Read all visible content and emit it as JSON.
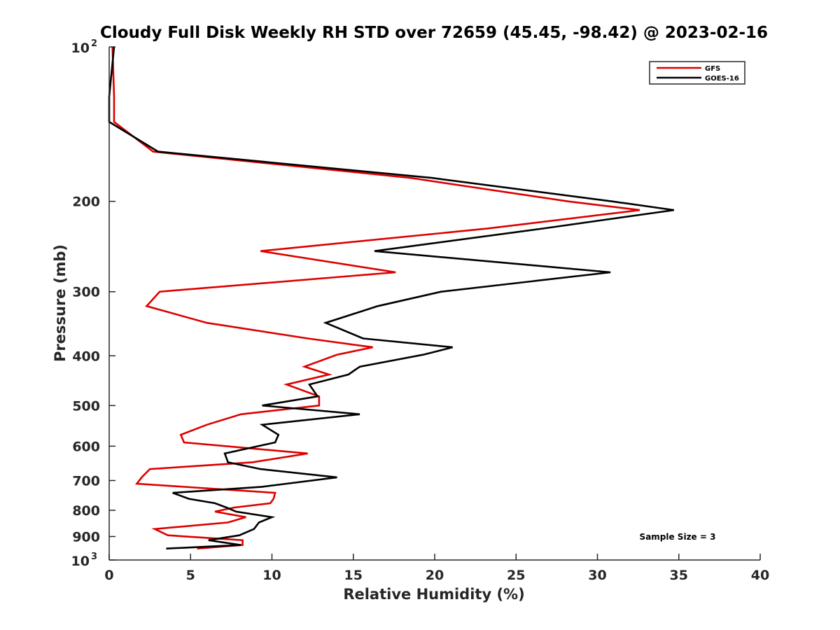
{
  "chart_data": {
    "type": "line",
    "title": "Cloudy Full Disk Weekly RH STD over 72659 (45.45, -98.42) @ 2023-02-16",
    "xlabel": "Relative Humidity (%)",
    "ylabel": "Pressure (mb)",
    "xlim": [
      0,
      40
    ],
    "ylim": [
      100,
      1000
    ],
    "yscale": "log",
    "y_reversed": true,
    "x_ticks": [
      0,
      5,
      10,
      15,
      20,
      25,
      30,
      35,
      40
    ],
    "x_tick_labels": [
      "0",
      "5",
      "10",
      "15",
      "20",
      "25",
      "30",
      "35",
      "40"
    ],
    "y_ticks": [
      200,
      300,
      400,
      500,
      600,
      700,
      800,
      900
    ],
    "y_tick_labels": [
      "200",
      "300",
      "400",
      "500",
      "600",
      "700",
      "800",
      "900"
    ],
    "y_end_labels": [
      {
        "value": 100,
        "base": "10",
        "exp": "2"
      },
      {
        "value": 1000,
        "base": "10",
        "exp": "3"
      }
    ],
    "grid": false,
    "legend_position": "top-right",
    "annotation": "Sample Size = 3",
    "series": [
      {
        "name": "GFS",
        "color": "#dd0000",
        "points": [
          [
            0.2,
            100
          ],
          [
            0.3,
            125
          ],
          [
            0.3,
            140
          ],
          [
            2.7,
            160
          ],
          [
            18.5,
            180
          ],
          [
            28.2,
            200
          ],
          [
            32.6,
            208
          ],
          [
            23.2,
            226
          ],
          [
            9.3,
            250
          ],
          [
            17.6,
            275
          ],
          [
            3.1,
            300
          ],
          [
            2.3,
            320
          ],
          [
            6,
            345
          ],
          [
            12.2,
            370
          ],
          [
            16.2,
            385
          ],
          [
            14,
            398
          ],
          [
            12,
            420
          ],
          [
            13.5,
            435
          ],
          [
            10.9,
            455
          ],
          [
            12.9,
            480
          ],
          [
            12.9,
            500
          ],
          [
            8.1,
            520
          ],
          [
            6,
            545
          ],
          [
            4.4,
            570
          ],
          [
            4.6,
            590
          ],
          [
            12.2,
            620
          ],
          [
            8.8,
            645
          ],
          [
            2.5,
            665
          ],
          [
            2,
            690
          ],
          [
            1.7,
            710
          ],
          [
            10.2,
            740
          ],
          [
            10.1,
            760
          ],
          [
            9.9,
            775
          ],
          [
            7.7,
            790
          ],
          [
            6.5,
            805
          ],
          [
            8.4,
            825
          ],
          [
            7.3,
            845
          ],
          [
            2.8,
            870
          ],
          [
            3.6,
            895
          ],
          [
            8.2,
            915
          ],
          [
            8.2,
            935
          ],
          [
            5.4,
            950
          ]
        ]
      },
      {
        "name": "GOES-16",
        "color": "#000000",
        "points": [
          [
            0.3,
            100
          ],
          [
            0,
            125
          ],
          [
            0,
            140
          ],
          [
            3,
            160
          ],
          [
            19.8,
            180
          ],
          [
            30.9,
            200
          ],
          [
            34.7,
            208
          ],
          [
            26.6,
            226
          ],
          [
            16.3,
            250
          ],
          [
            30.8,
            275
          ],
          [
            20.4,
            300
          ],
          [
            16.5,
            320
          ],
          [
            13.3,
            345
          ],
          [
            15.6,
            370
          ],
          [
            21.1,
            385
          ],
          [
            19.3,
            398
          ],
          [
            15.4,
            420
          ],
          [
            14.7,
            435
          ],
          [
            12.3,
            455
          ],
          [
            12.8,
            480
          ],
          [
            9.4,
            500
          ],
          [
            15.4,
            520
          ],
          [
            9.4,
            545
          ],
          [
            10.4,
            570
          ],
          [
            10.2,
            590
          ],
          [
            7.1,
            620
          ],
          [
            7.3,
            645
          ],
          [
            9.3,
            665
          ],
          [
            14,
            690
          ],
          [
            10.9,
            710
          ],
          [
            9.4,
            720
          ],
          [
            3.9,
            740
          ],
          [
            4.9,
            760
          ],
          [
            6.5,
            775
          ],
          [
            7.2,
            790
          ],
          [
            7.8,
            805
          ],
          [
            10,
            825
          ],
          [
            9.2,
            845
          ],
          [
            8.9,
            870
          ],
          [
            8,
            895
          ],
          [
            6.1,
            915
          ],
          [
            8.1,
            935
          ],
          [
            3.5,
            950
          ]
        ]
      }
    ]
  }
}
